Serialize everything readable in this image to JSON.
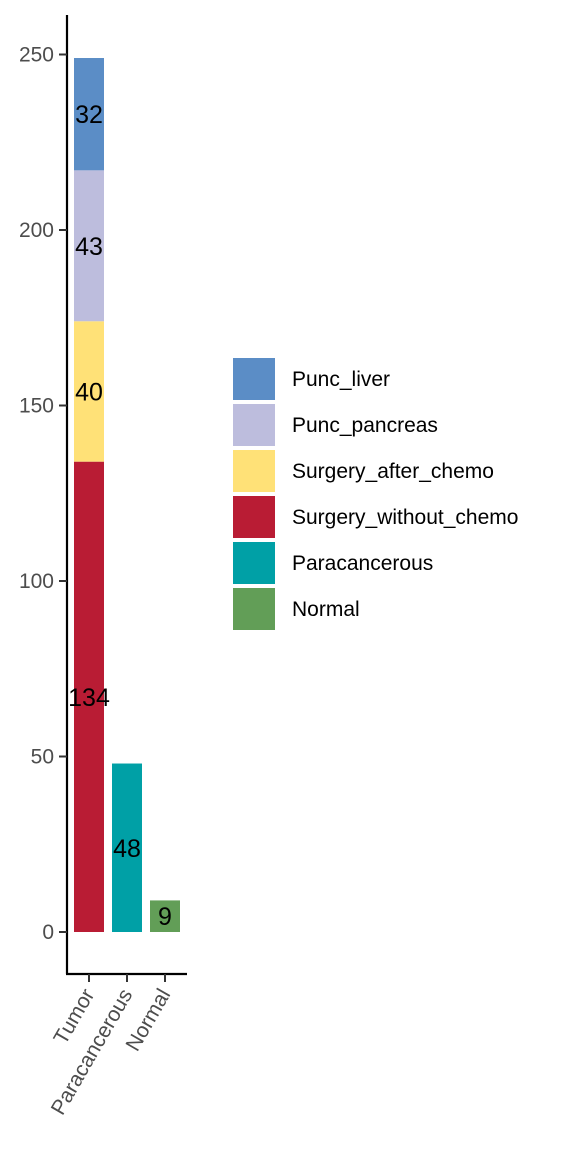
{
  "chart_data": {
    "type": "bar",
    "stacked": true,
    "categories": [
      "Tumor",
      "Paracancerous",
      "Normal"
    ],
    "ylim": [
      0,
      260
    ],
    "yticks": [
      0,
      50,
      100,
      150,
      200,
      250
    ],
    "xlabel": "",
    "ylabel": "",
    "grid": false,
    "legend_position": "right",
    "series": [
      {
        "name": "Punc_liver",
        "color": "#5B8DC6",
        "values": [
          32,
          0,
          0
        ]
      },
      {
        "name": "Punc_pancreas",
        "color": "#BDBDDD",
        "values": [
          43,
          0,
          0
        ]
      },
      {
        "name": "Surgery_after_chemo",
        "color": "#FFE177",
        "values": [
          40,
          0,
          0
        ]
      },
      {
        "name": "Surgery_without_chemo",
        "color": "#B91C34",
        "values": [
          134,
          0,
          0
        ]
      },
      {
        "name": "Paracancerous",
        "color": "#00A0A6",
        "values": [
          0,
          48,
          0
        ]
      },
      {
        "name": "Normal",
        "color": "#629E57",
        "values": [
          0,
          0,
          9
        ]
      }
    ],
    "stack_order_bottom_to_top": [
      "Surgery_without_chemo",
      "Surgery_after_chemo",
      "Punc_pancreas",
      "Punc_liver",
      "Paracancerous",
      "Normal"
    ]
  }
}
